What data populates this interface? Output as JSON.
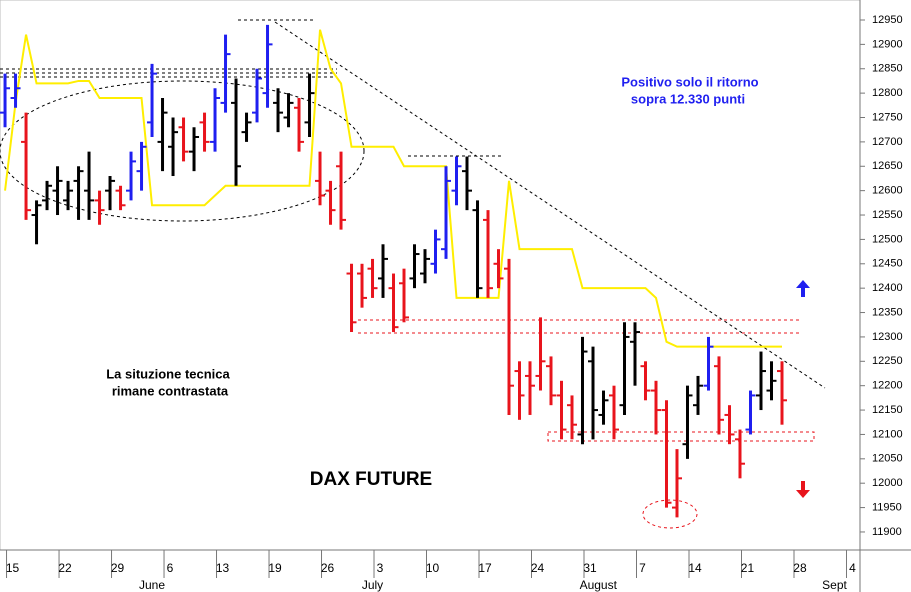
{
  "chart_data": {
    "type": "ohlc",
    "title": "DAX FUTURE",
    "annotations": [
      "Positivo solo il ritorno",
      "sopra 12.330 punti",
      "La situzione tecnica",
      "rimane contrastata"
    ],
    "ylim": [
      11863,
      12991
    ],
    "yticks": [
      11900,
      11950,
      12000,
      12050,
      12100,
      12150,
      12200,
      12250,
      12300,
      12350,
      12400,
      12450,
      12500,
      12550,
      12600,
      12650,
      12700,
      12750,
      12800,
      12850,
      12900,
      12950
    ],
    "xlim": [
      -0.48,
      81.43
    ],
    "xticks": [
      {
        "value": 1,
        "label": "15"
      },
      {
        "value": 6,
        "label": "22"
      },
      {
        "value": 11,
        "label": "29"
      },
      {
        "value": 16,
        "label": "6"
      },
      {
        "value": 21,
        "label": "13"
      },
      {
        "value": 26,
        "label": "19"
      },
      {
        "value": 31,
        "label": "26"
      },
      {
        "value": 36,
        "label": "3"
      },
      {
        "value": 41,
        "label": "10"
      },
      {
        "value": 46,
        "label": "17"
      },
      {
        "value": 51,
        "label": "24"
      },
      {
        "value": 56,
        "label": "31"
      },
      {
        "value": 61,
        "label": "7"
      },
      {
        "value": 66,
        "label": "14"
      },
      {
        "value": 71,
        "label": "21"
      },
      {
        "value": 76,
        "label": "28"
      },
      {
        "value": 81,
        "label": "4"
      }
    ],
    "month_ticks": [
      {
        "value": 14,
        "label": "June"
      },
      {
        "value": 35,
        "label": "July"
      },
      {
        "value": 56.5,
        "label": "August"
      },
      {
        "value": 79,
        "label": "Sept"
      }
    ],
    "bars": {
      "open": [
        12760,
        12790,
        12700,
        12550,
        12580,
        12600,
        12580,
        12620,
        12600,
        12580,
        12600,
        12600,
        12600,
        12640,
        12740,
        12700,
        12690,
        12730,
        12680,
        12740,
        12700,
        12780,
        12780,
        12720,
        12760,
        12800,
        12780,
        12750,
        12770,
        12740,
        12620,
        12600,
        12650,
        12430,
        12430,
        12440,
        12420,
        12400,
        12410,
        12420,
        12430,
        12450,
        12480,
        12600,
        12640,
        12560,
        12540,
        12450,
        12440,
        12230,
        12220,
        12220,
        12240,
        12180,
        12160,
        12100,
        12250,
        12140,
        12180,
        12160,
        12290,
        12240,
        12190,
        12150,
        11950,
        12080,
        12160,
        12200,
        12240,
        12140,
        12090,
        12110,
        12180,
        12190,
        12230
      ],
      "high": [
        12840,
        12840,
        12760,
        12580,
        12620,
        12650,
        12620,
        12650,
        12680,
        12600,
        12630,
        12610,
        12680,
        12700,
        12860,
        12790,
        12750,
        12750,
        12730,
        12760,
        12810,
        12920,
        12830,
        12760,
        12850,
        12940,
        12810,
        12800,
        12790,
        12840,
        12680,
        12620,
        12680,
        12450,
        12450,
        12460,
        12490,
        12430,
        12440,
        12490,
        12480,
        12520,
        12650,
        12670,
        12670,
        12580,
        12560,
        12480,
        12460,
        12250,
        12250,
        12340,
        12260,
        12210,
        12180,
        12300,
        12280,
        12190,
        12200,
        12330,
        12330,
        12250,
        12210,
        12170,
        12070,
        12200,
        12220,
        12300,
        12260,
        12160,
        12110,
        12190,
        12270,
        12250,
        12250
      ],
      "low": [
        12730,
        12770,
        12540,
        12490,
        12560,
        12550,
        12560,
        12540,
        12540,
        12530,
        12560,
        12560,
        12580,
        12600,
        12710,
        12640,
        12630,
        12660,
        12640,
        12680,
        12680,
        12760,
        12610,
        12700,
        12740,
        12770,
        12720,
        12730,
        12680,
        12710,
        12570,
        12530,
        12520,
        12310,
        12360,
        12380,
        12380,
        12310,
        12330,
        12400,
        12410,
        12430,
        12460,
        12570,
        12560,
        12380,
        12380,
        12400,
        12140,
        12130,
        12140,
        12190,
        12160,
        12090,
        12090,
        12080,
        12090,
        12120,
        12090,
        12140,
        12200,
        12170,
        12100,
        11950,
        11930,
        12050,
        12140,
        12190,
        12100,
        12080,
        12010,
        12100,
        12150,
        12170,
        12120
      ],
      "close": [
        12810,
        12810,
        12560,
        12570,
        12610,
        12620,
        12600,
        12640,
        12580,
        12560,
        12620,
        12570,
        12660,
        12690,
        12840,
        12760,
        12720,
        12680,
        12710,
        12700,
        12790,
        12880,
        12650,
        12740,
        12830,
        12900,
        12760,
        12780,
        12700,
        12800,
        12590,
        12560,
        12540,
        12330,
        12380,
        12400,
        12460,
        12320,
        12340,
        12470,
        12460,
        12500,
        12620,
        12650,
        12600,
        12400,
        12400,
        12420,
        12200,
        12180,
        12200,
        12250,
        12180,
        12110,
        12120,
        12270,
        12150,
        12170,
        12110,
        12300,
        12310,
        12190,
        12150,
        11960,
        12010,
        12180,
        12200,
        12280,
        12130,
        12100,
        12040,
        12180,
        12230,
        12210,
        12170
      ],
      "colors": [
        "#1f1ff0",
        "#1f1ff0",
        "#e8141c",
        "#000000",
        "#000000",
        "#000000",
        "#000000",
        "#000000",
        "#000000",
        "#e8141c",
        "#000000",
        "#e8141c",
        "#1f1ff0",
        "#1f1ff0",
        "#1f1ff0",
        "#000000",
        "#000000",
        "#e8141c",
        "#000000",
        "#e8141c",
        "#1f1ff0",
        "#1f1ff0",
        "#000000",
        "#000000",
        "#1f1ff0",
        "#1f1ff0",
        "#000000",
        "#000000",
        "#e8141c",
        "#000000",
        "#e8141c",
        "#e8141c",
        "#e8141c",
        "#e8141c",
        "#e8141c",
        "#e8141c",
        "#000000",
        "#e8141c",
        "#e8141c",
        "#000000",
        "#000000",
        "#1f1ff0",
        "#1f1ff0",
        "#1f1ff0",
        "#000000",
        "#000000",
        "#e8141c",
        "#e8141c",
        "#e8141c",
        "#e8141c",
        "#e8141c",
        "#e8141c",
        "#e8141c",
        "#e8141c",
        "#e8141c",
        "#000000",
        "#000000",
        "#000000",
        "#e8141c",
        "#000000",
        "#000000",
        "#e8141c",
        "#e8141c",
        "#e8141c",
        "#e8141c",
        "#000000",
        "#000000",
        "#1f1ff0",
        "#e8141c",
        "#e8141c",
        "#e8141c",
        "#1f1ff0",
        "#000000",
        "#000000",
        "#e8141c"
      ]
    },
    "stop_line": {
      "color": "#ffee00",
      "values": [
        12600,
        12780,
        12920,
        12820,
        12820,
        12820,
        12820,
        12825,
        12825,
        12790,
        12790,
        12790,
        12790,
        12790,
        12570,
        12570,
        12570,
        12570,
        12570,
        12570,
        12590,
        12610,
        12610,
        12610,
        12610,
        12610,
        12610,
        12610,
        12610,
        12610,
        12930,
        12850,
        12820,
        12690,
        12690,
        12690,
        12690,
        12690,
        12650,
        12650,
        12650,
        12650,
        12650,
        12380,
        12380,
        12380,
        12380,
        12380,
        12620,
        12480,
        12480,
        12480,
        12480,
        12480,
        12480,
        12400,
        12400,
        12400,
        12400,
        12400,
        12400,
        12400,
        12380,
        12290,
        12280,
        12280,
        12280,
        12280,
        12280,
        12280,
        12280,
        12280,
        12280,
        12280,
        12280
      ]
    }
  }
}
